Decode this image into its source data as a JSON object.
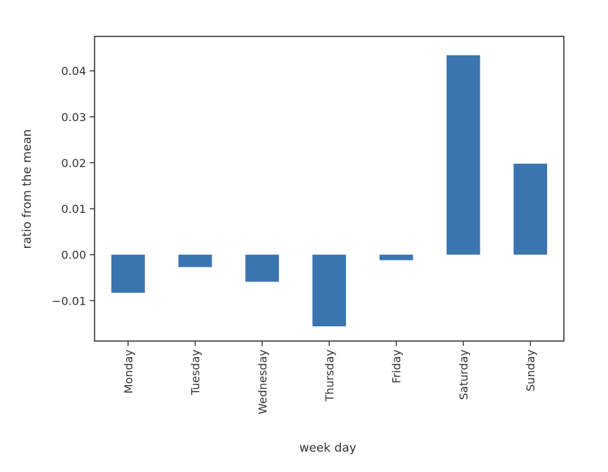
{
  "chart_data": {
    "type": "bar",
    "title": "",
    "xlabel": "week day",
    "ylabel": "ratio from the mean",
    "categories": [
      "Monday",
      "Tuesday",
      "Wednesday",
      "Thursday",
      "Friday",
      "Saturday",
      "Sunday"
    ],
    "values": [
      -0.0083,
      -0.0027,
      -0.0059,
      -0.0156,
      -0.0012,
      0.0434,
      0.0198
    ],
    "ylim": [
      -0.0188,
      0.0475
    ],
    "yticks": [
      -0.01,
      0.0,
      0.01,
      0.02,
      0.03,
      0.04
    ],
    "ytick_labels": [
      "−0.01",
      "0.00",
      "0.01",
      "0.02",
      "0.03",
      "0.04"
    ],
    "grid": false,
    "bar_color": "#3a75b0"
  }
}
